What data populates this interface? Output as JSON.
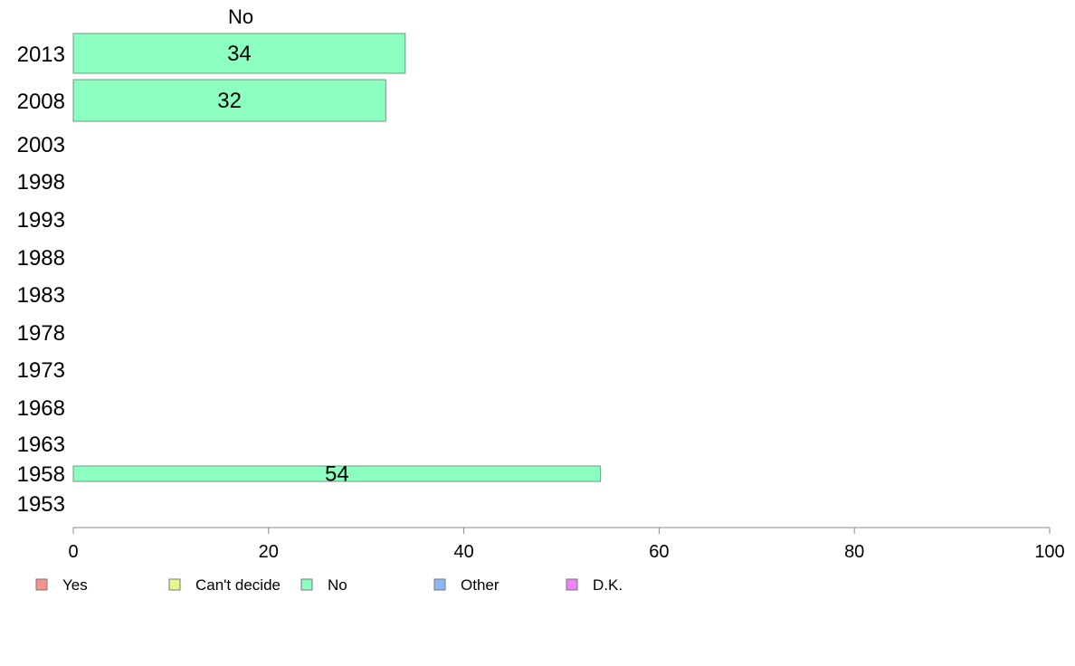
{
  "chart_data": {
    "type": "bar",
    "orientation": "horizontal",
    "title": "",
    "xlabel": "",
    "ylabel": "",
    "xlim": [
      0,
      100
    ],
    "x_ticks": [
      0,
      20,
      40,
      60,
      80,
      100
    ],
    "grid": false,
    "legend_position": "bottom-left",
    "categories": [
      "2013",
      "2008",
      "2003",
      "1998",
      "1993",
      "1988",
      "1983",
      "1978",
      "1973",
      "1968",
      "1963",
      "1958",
      "1953"
    ],
    "series": [
      {
        "name": "Yes",
        "color": "#f8928c",
        "values": [
          null,
          null,
          null,
          null,
          null,
          null,
          null,
          null,
          null,
          null,
          null,
          null,
          null
        ]
      },
      {
        "name": "Can't decide",
        "color": "#e6f88c",
        "values": [
          null,
          null,
          null,
          null,
          null,
          null,
          null,
          null,
          null,
          null,
          null,
          null,
          null
        ]
      },
      {
        "name": "No",
        "color": "#8cffc0",
        "values": [
          34,
          32,
          null,
          null,
          null,
          null,
          null,
          null,
          null,
          null,
          null,
          54,
          null
        ]
      },
      {
        "name": "Other",
        "color": "#8cb8f8",
        "values": [
          null,
          null,
          null,
          null,
          null,
          null,
          null,
          null,
          null,
          null,
          null,
          null,
          null
        ]
      },
      {
        "name": "D.K.",
        "color": "#ec84f4",
        "values": [
          null,
          null,
          null,
          null,
          null,
          null,
          null,
          null,
          null,
          null,
          null,
          null,
          null
        ]
      }
    ],
    "column_header": "No"
  }
}
